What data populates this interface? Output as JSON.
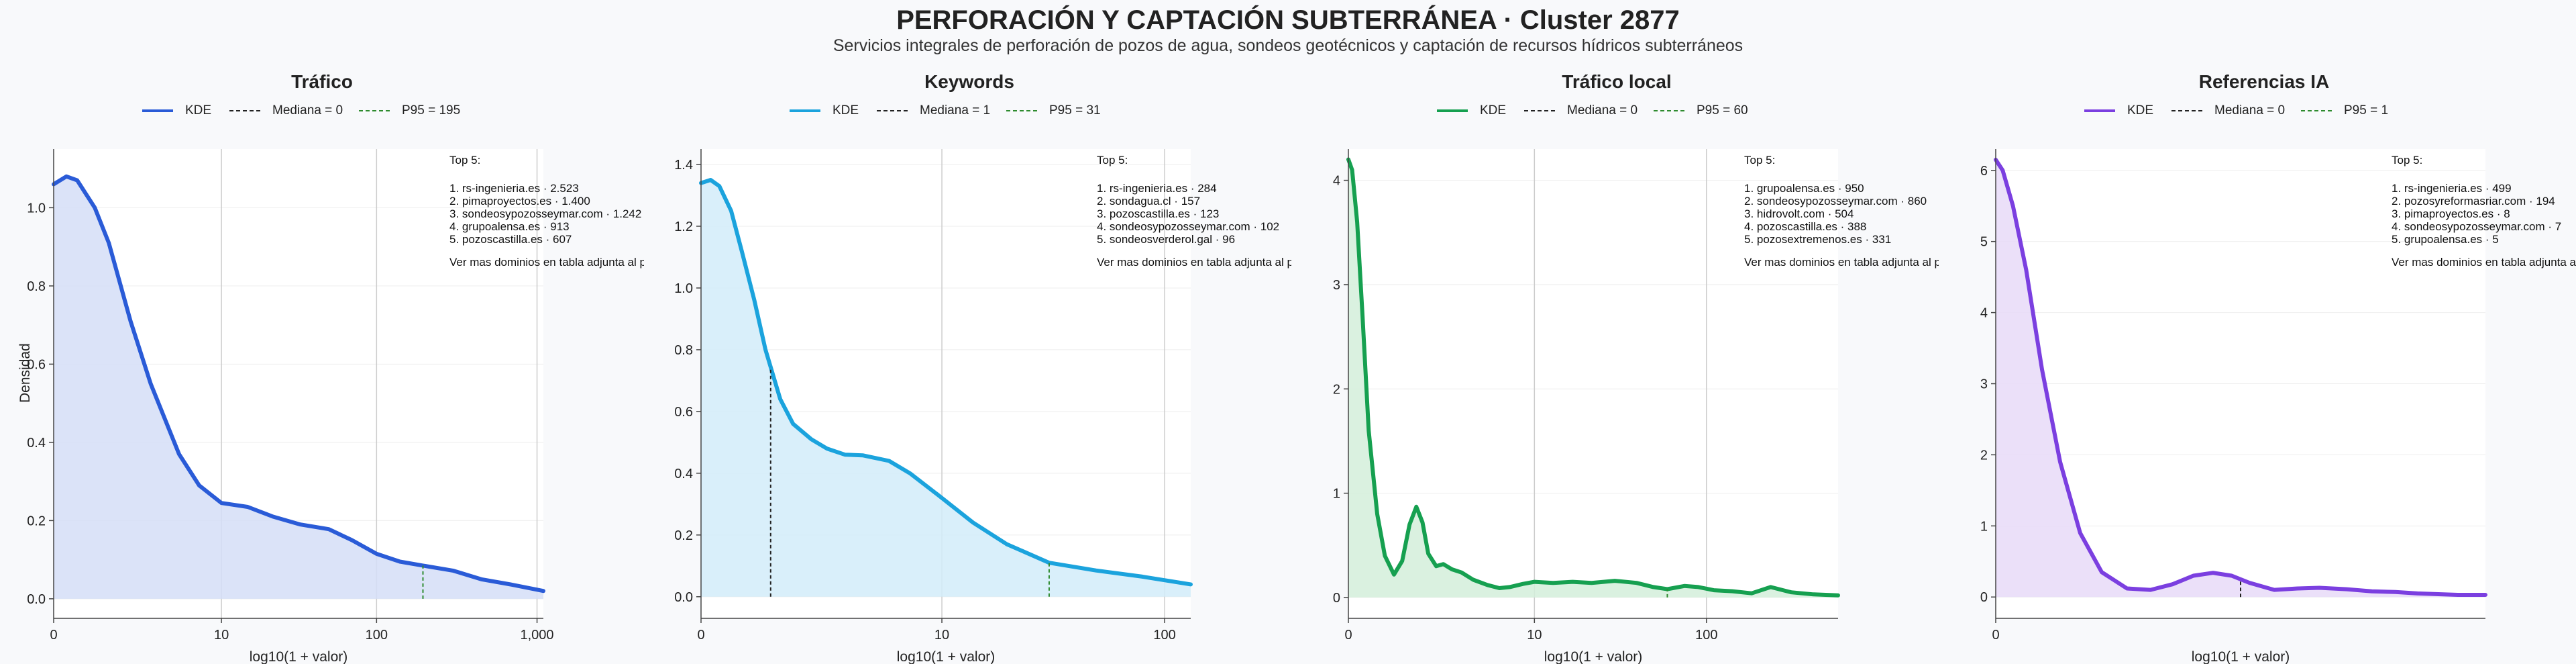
{
  "title": "PERFORACIÓN Y CAPTACIÓN SUBTERRÁNEA · Cluster 2877",
  "subtitle": "Servicios integrales de perforación de pozos de agua, sondeos geotécnicos y captación de recursos hídricos subterráneos",
  "ylabel": "Densidad",
  "colors": {
    "ref_line": "#222222",
    "p95_line": "#2e8b2e",
    "grid": "#cccccc",
    "axis": "#444444"
  },
  "panels": [
    {
      "title": "Tráfico",
      "color": "#2a5bd7",
      "fill": "#d5def7",
      "legend": {
        "kde": "KDE",
        "median": "Mediana = 0",
        "p95": "P95 = 195"
      },
      "xlabel": "log10(1 + valor)",
      "top_header": "Top 5:",
      "top": [
        "1. rs-ingenieria.es · 2.523",
        "2. pimaproyectos.es · 1.400",
        "3. sondeosypozosseymar.com · 1.242",
        "4. grupoalensa.es · 913",
        "5. pozoscastilla.es · 607"
      ],
      "footer": "Ver mas dominios en tabla adjunta al pack"
    },
    {
      "title": "Keywords",
      "color": "#1ba3dd",
      "fill": "#d2ecf9",
      "legend": {
        "kde": "KDE",
        "median": "Mediana = 1",
        "p95": "P95 = 31"
      },
      "xlabel": "log10(1 + valor)",
      "top_header": "Top 5:",
      "top": [
        "1. rs-ingenieria.es · 284",
        "2. sondagua.cl · 157",
        "3. pozoscastilla.es · 123",
        "4. sondeosypozosseymar.com · 102",
        "5. sondeosverderol.gal · 96"
      ],
      "footer": "Ver mas dominios en tabla adjunta al pack"
    },
    {
      "title": "Tráfico local",
      "color": "#16a050",
      "fill": "#d3eedb",
      "legend": {
        "kde": "KDE",
        "median": "Mediana = 0",
        "p95": "P95 = 60"
      },
      "xlabel": "log10(1 + valor)",
      "top_header": "Top 5:",
      "top": [
        "1. grupoalensa.es · 950",
        "2. sondeosypozosseymar.com · 860",
        "3. hidrovolt.com · 504",
        "4. pozoscastilla.es · 388",
        "5. pozosextremenos.es · 331"
      ],
      "footer": "Ver mas dominios en tabla adjunta al pack"
    },
    {
      "title": "Referencias IA",
      "color": "#7b3fe0",
      "fill": "#e8dbf8",
      "legend": {
        "kde": "KDE",
        "median": "Mediana = 0",
        "p95": "P95 = 1"
      },
      "xlabel": "log10(1 + valor)",
      "top_header": "Top 5:",
      "top": [
        "1. rs-ingenieria.es · 499",
        "2. pozosyreformasriar.com · 194",
        "3. pimaproyectos.es · 8",
        "4. sondeosypozosseymar.com · 7",
        "5. grupoalensa.es · 5"
      ],
      "footer": "Ver mas dominios en tabla adjunta al pack"
    }
  ],
  "chart_data": [
    {
      "type": "area",
      "title": "Tráfico",
      "xlabel": "log10(1 + valor)",
      "ylabel": "Densidad",
      "xscale": "log10(1 + valor)",
      "xlim": [
        0,
        1095
      ],
      "ylim": [
        -0.05,
        1.15
      ],
      "xticks": [
        0,
        10,
        100,
        1000
      ],
      "xtick_labels": [
        "0",
        "10",
        "100",
        "1,000"
      ],
      "yticks": [
        0,
        0.2,
        0.4,
        0.6,
        0.8,
        1.0
      ],
      "ytick_labels": [
        "0.0",
        "0.2",
        "0.4",
        "0.6",
        "0.8",
        "1.0"
      ],
      "grid": true,
      "legend_position": "top-center, outside",
      "series": [
        {
          "name": "KDE",
          "x": [
            0,
            0.2,
            0.4,
            0.8,
            1.2,
            2,
            3,
            5,
            7,
            10,
            15,
            22,
            33,
            50,
            70,
            100,
            140,
            195,
            300,
            450,
            700,
            1095
          ],
          "y": [
            1.06,
            1.08,
            1.07,
            1.0,
            0.91,
            0.71,
            0.55,
            0.37,
            0.29,
            0.245,
            0.235,
            0.21,
            0.19,
            0.178,
            0.15,
            0.115,
            0.095,
            0.085,
            0.072,
            0.05,
            0.036,
            0.02
          ]
        }
      ],
      "median": 0,
      "p95": 195,
      "legend": [
        "KDE",
        "Mediana = 0",
        "P95 = 195"
      ]
    },
    {
      "type": "area",
      "title": "Keywords",
      "xlabel": "log10(1 + valor)",
      "xscale": "log10(1 + valor)",
      "xlim": [
        0,
        130
      ],
      "ylim": [
        -0.07,
        1.45
      ],
      "xticks": [
        0,
        10,
        100
      ],
      "xtick_labels": [
        "0",
        "10",
        "100"
      ],
      "yticks": [
        0,
        0.2,
        0.4,
        0.6,
        0.8,
        1.0,
        1.2,
        1.4
      ],
      "ytick_labels": [
        "0.0",
        "0.2",
        "0.4",
        "0.6",
        "0.8",
        "1.0",
        "1.2",
        "1.4"
      ],
      "grid": true,
      "legend_position": "top-center, outside",
      "series": [
        {
          "name": "KDE",
          "x": [
            0,
            0.1,
            0.2,
            0.35,
            0.5,
            0.7,
            0.9,
            1.2,
            1.5,
            2,
            2.5,
            3.2,
            4,
            5.5,
            7,
            10,
            14,
            20,
            31,
            50,
            80,
            130
          ],
          "y": [
            1.34,
            1.35,
            1.33,
            1.25,
            1.12,
            0.96,
            0.8,
            0.64,
            0.56,
            0.51,
            0.48,
            0.46,
            0.458,
            0.44,
            0.4,
            0.32,
            0.24,
            0.17,
            0.11,
            0.085,
            0.065,
            0.04
          ]
        }
      ],
      "median": 1,
      "p95": 31,
      "legend": [
        "KDE",
        "Mediana = 1",
        "P95 = 31"
      ]
    },
    {
      "type": "area",
      "title": "Tráfico local",
      "xlabel": "log10(1 + valor)",
      "xscale": "log10(1 + valor)",
      "xlim": [
        0,
        550
      ],
      "ylim": [
        -0.2,
        4.3
      ],
      "xticks": [
        0,
        10,
        100
      ],
      "xtick_labels": [
        "0",
        "10",
        "100"
      ],
      "yticks": [
        0,
        1,
        2,
        3,
        4
      ],
      "ytick_labels": [
        "0",
        "1",
        "2",
        "3",
        "4"
      ],
      "grid": true,
      "legend_position": "top-center, outside",
      "series": [
        {
          "name": "KDE",
          "x": [
            0,
            0.05,
            0.12,
            0.2,
            0.3,
            0.45,
            0.6,
            0.8,
            1.0,
            1.2,
            1.4,
            1.6,
            1.8,
            2.1,
            2.4,
            2.8,
            3.3,
            4,
            5,
            6,
            7,
            8.5,
            10,
            13,
            17,
            22,
            30,
            40,
            50,
            60,
            75,
            90,
            110,
            140,
            180,
            230,
            300,
            400,
            550
          ],
          "y": [
            4.2,
            4.1,
            3.6,
            2.7,
            1.6,
            0.8,
            0.4,
            0.22,
            0.35,
            0.7,
            0.87,
            0.72,
            0.42,
            0.3,
            0.32,
            0.27,
            0.24,
            0.17,
            0.12,
            0.09,
            0.1,
            0.13,
            0.15,
            0.14,
            0.15,
            0.14,
            0.16,
            0.14,
            0.1,
            0.08,
            0.11,
            0.1,
            0.07,
            0.06,
            0.04,
            0.1,
            0.05,
            0.03,
            0.02
          ]
        }
      ],
      "median": 0,
      "p95": 60,
      "legend": [
        "KDE",
        "Mediana = 0",
        "P95 = 60"
      ]
    },
    {
      "type": "area",
      "title": "Referencias IA",
      "xlabel": "log10(1 + valor)",
      "xscale": "log10(1 + valor)",
      "xlim": [
        0,
        3
      ],
      "ylim": [
        -0.3,
        6.3
      ],
      "xticks": [
        0
      ],
      "xtick_labels": [
        "0"
      ],
      "yticks": [
        0,
        1,
        2,
        3,
        4,
        5,
        6
      ],
      "ytick_labels": [
        "0",
        "1",
        "2",
        "3",
        "4",
        "5",
        "6"
      ],
      "grid": true,
      "legend_position": "top-center, outside",
      "series": [
        {
          "name": "KDE",
          "x": [
            0,
            0.02,
            0.05,
            0.09,
            0.14,
            0.2,
            0.27,
            0.35,
            0.45,
            0.55,
            0.65,
            0.75,
            0.85,
            0.95,
            1.05,
            1.2,
            1.35,
            1.5,
            1.7,
            1.9,
            2.1,
            2.3,
            2.5,
            2.7,
            3
          ],
          "y": [
            6.15,
            6.0,
            5.5,
            4.6,
            3.2,
            1.9,
            0.9,
            0.35,
            0.12,
            0.1,
            0.18,
            0.3,
            0.34,
            0.3,
            0.2,
            0.1,
            0.12,
            0.13,
            0.11,
            0.08,
            0.07,
            0.05,
            0.04,
            0.03,
            0.03
          ]
        }
      ],
      "median": 0,
      "p95": 1,
      "legend": [
        "KDE",
        "Mediana = 0",
        "P95 = 1"
      ]
    }
  ]
}
